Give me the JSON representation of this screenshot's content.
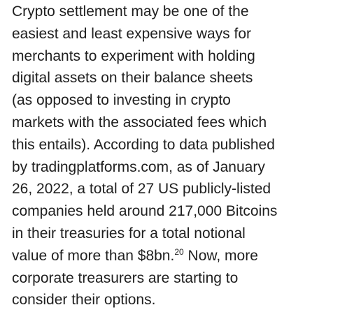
{
  "paragraph": {
    "lines": [
      "Crypto settlement may be one of the",
      "easiest and least expensive ways for",
      "merchants to experiment with holding",
      "digital assets on their balance sheets",
      "(as opposed to investing in crypto",
      "markets with the associated fees which",
      "this entails). According to data published",
      "by tradingplatforms.com, as of January",
      "26, 2022, a total of 27 US publicly-listed",
      "companies held around 217,000 Bitcoins",
      "in their treasuries for a total notional",
      {
        "before": "value of more than $8bn.",
        "footnote": "20",
        "after": " Now, more"
      },
      "corporate treasurers are starting to",
      "consider their options."
    ]
  }
}
